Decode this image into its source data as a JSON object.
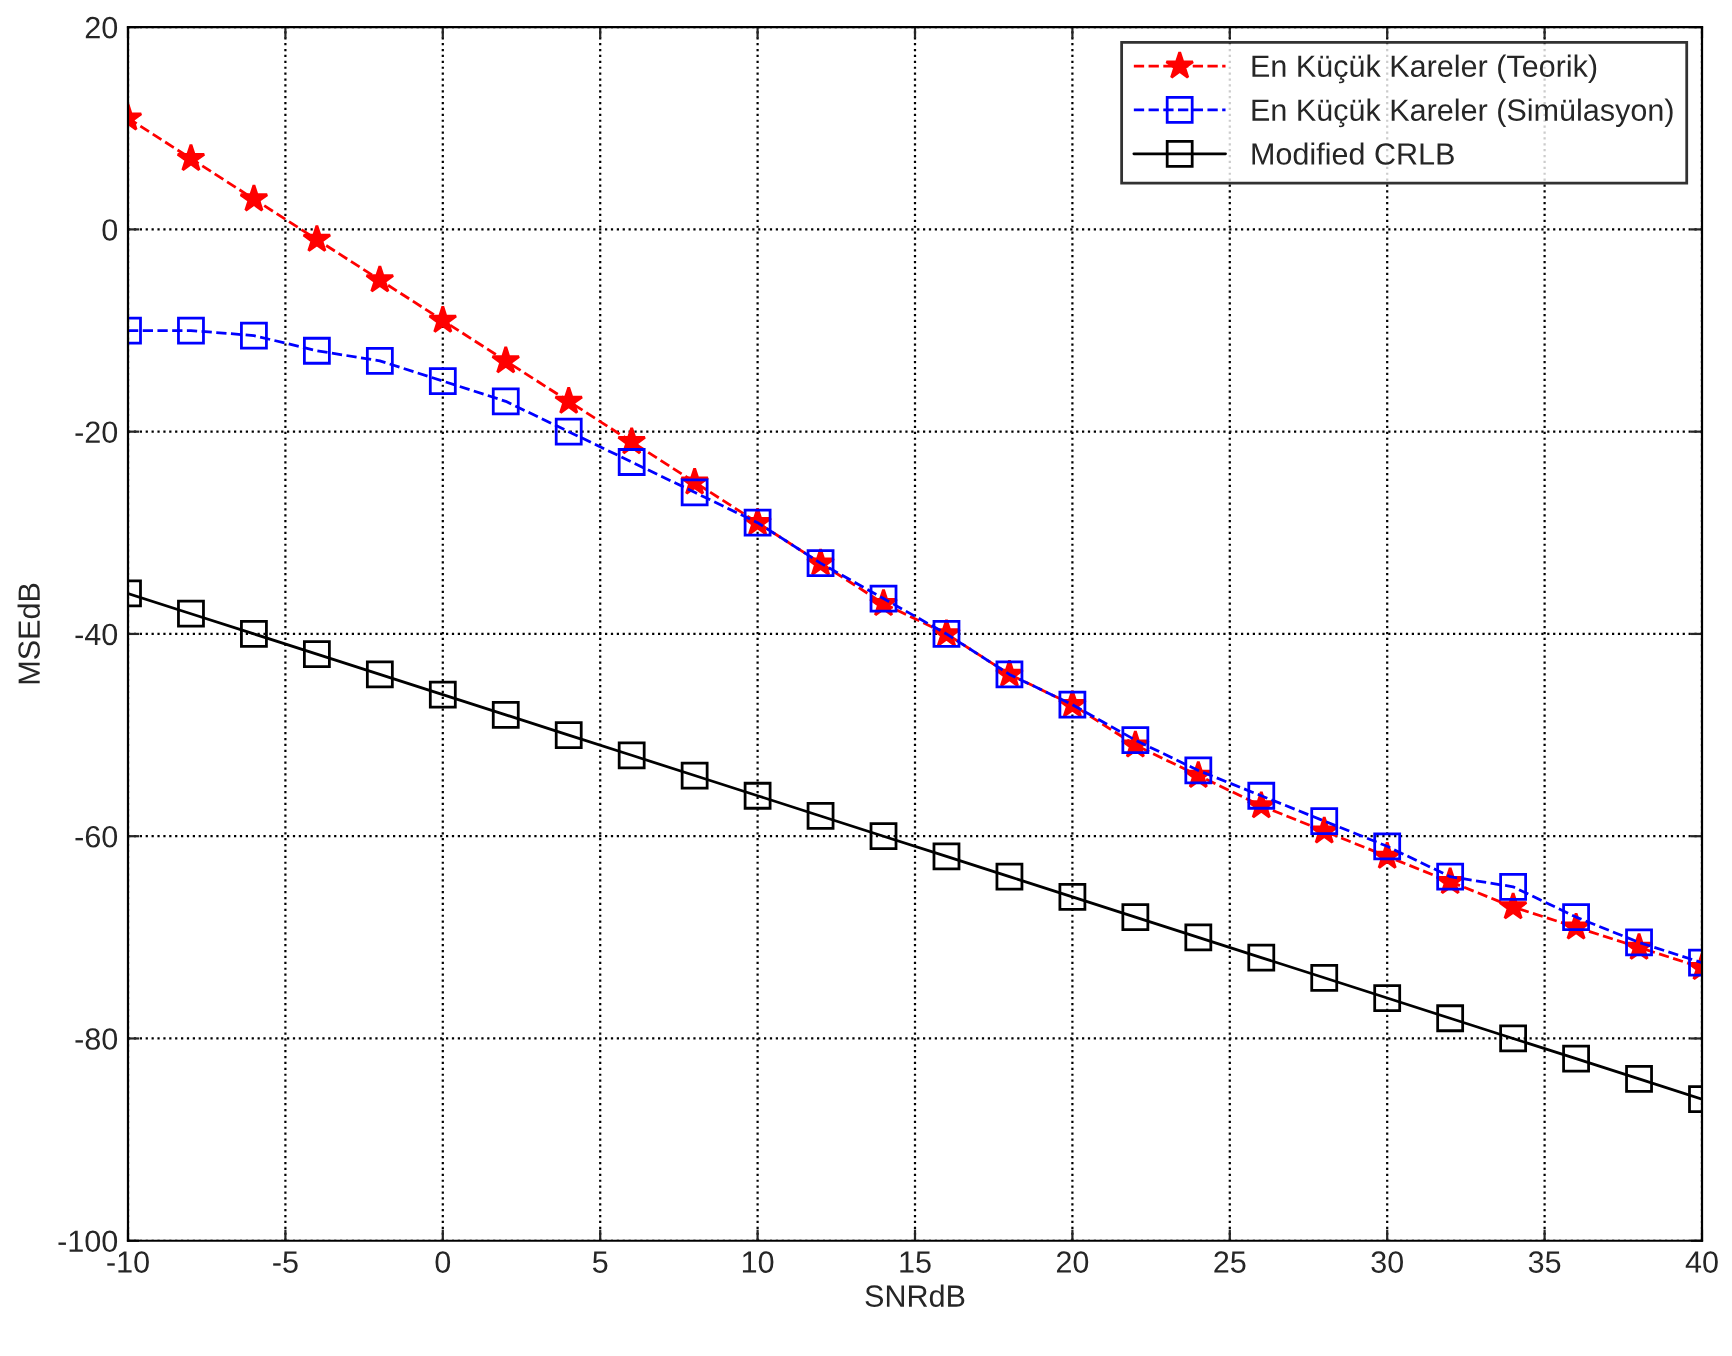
{
  "chart_data": {
    "type": "line",
    "xlabel": "SNRdB",
    "ylabel": "MSEdB",
    "x": [
      -10,
      -8,
      -6,
      -4,
      -2,
      0,
      2,
      4,
      6,
      8,
      10,
      12,
      14,
      16,
      18,
      20,
      22,
      24,
      26,
      28,
      30,
      32,
      34,
      36,
      38,
      40
    ],
    "series": [
      {
        "name": "En Küçük Kareler (Teorik)",
        "color": "#ff0000",
        "marker": "star",
        "line_style": "dashed",
        "values": [
          11,
          7,
          3,
          -1,
          -5,
          -9,
          -13,
          -17,
          -21,
          -25,
          -29,
          -33,
          -37,
          -40,
          -44,
          -47,
          -51,
          -54,
          -57,
          -59.5,
          -62,
          -64.5,
          -67,
          -69,
          -71,
          -73
        ]
      },
      {
        "name": "En Küçük Kareler (Simülasyon)",
        "color": "#0000ff",
        "marker": "square",
        "line_style": "dashed",
        "values": [
          -10,
          -10,
          -10.5,
          -12,
          -13,
          -15,
          -17,
          -20,
          -23,
          -26,
          -29,
          -33,
          -36.5,
          -40,
          -44,
          -47,
          -50.5,
          -53.5,
          -56,
          -58.5,
          -61,
          -64,
          -65,
          -68,
          -70.5,
          -72.5
        ]
      },
      {
        "name": "Modified CRLB",
        "color": "#000000",
        "marker": "square",
        "line_style": "solid",
        "values": [
          -36,
          -38,
          -40,
          -42,
          -44,
          -46,
          -48,
          -50,
          -52,
          -54,
          -56,
          -58,
          -60,
          -62,
          -64,
          -66,
          -68,
          -70,
          -72,
          -74,
          -76,
          -78,
          -80,
          -82,
          -84,
          -86
        ]
      }
    ],
    "xlim": [
      -10,
      40
    ],
    "xticks": [
      -10,
      -5,
      0,
      5,
      10,
      15,
      20,
      25,
      30,
      35,
      40
    ],
    "ylim": [
      -100,
      20
    ],
    "yticks": [
      -100,
      -80,
      -60,
      -40,
      -20,
      0,
      20
    ],
    "grid": true,
    "legend": "top right"
  }
}
